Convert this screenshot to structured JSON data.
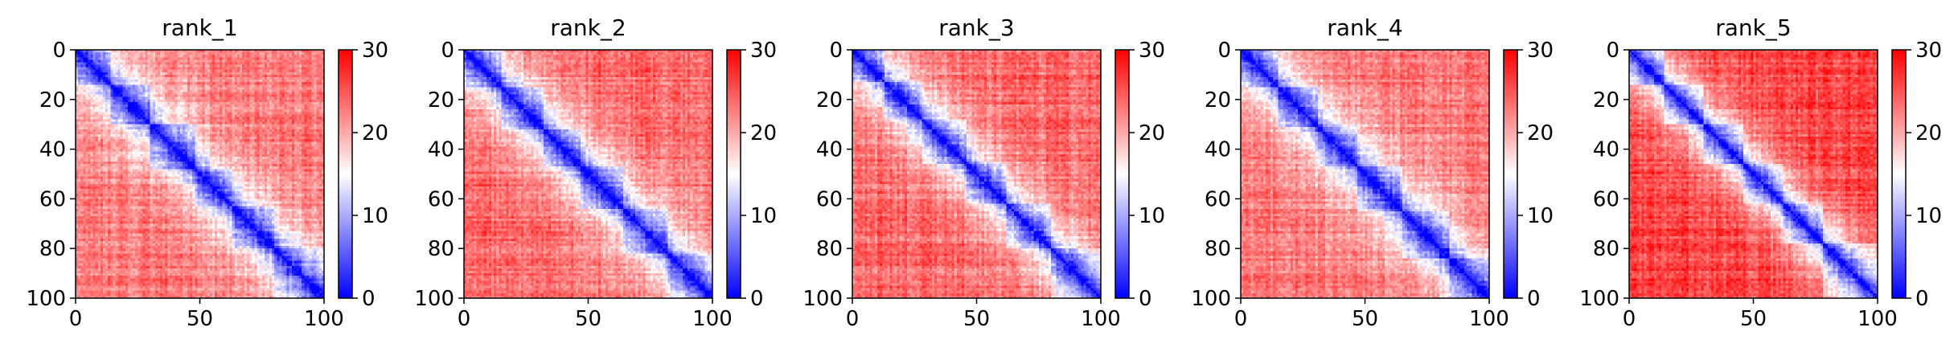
{
  "colors": {
    "low": "#0000ff",
    "mid": "#ffffff",
    "high": "#ff0000",
    "axis": "#000000"
  },
  "chart_data": [
    {
      "type": "heatmap",
      "title": "rank_1",
      "size": 100,
      "x_ticks": [
        "0",
        "50",
        "100"
      ],
      "y_ticks": [
        "0",
        "20",
        "40",
        "60",
        "80",
        "100"
      ],
      "xlim": [
        0,
        100
      ],
      "ylim": [
        100,
        0
      ],
      "colorbar": {
        "ticks": [
          "0",
          "10",
          "20",
          "30"
        ],
        "range": [
          0,
          30
        ],
        "colormap": "bwr"
      },
      "band_width": 12,
      "offdiag_level": 23,
      "grid": false,
      "domains": [
        [
          0,
          14
        ],
        [
          14,
          30
        ],
        [
          30,
          48
        ],
        [
          48,
          63
        ],
        [
          63,
          80
        ],
        [
          80,
          100
        ]
      ]
    },
    {
      "type": "heatmap",
      "title": "rank_2",
      "size": 100,
      "x_ticks": [
        "0",
        "50",
        "100"
      ],
      "y_ticks": [
        "0",
        "20",
        "40",
        "60",
        "80",
        "100"
      ],
      "xlim": [
        0,
        100
      ],
      "ylim": [
        100,
        0
      ],
      "colorbar": {
        "ticks": [
          "0",
          "10",
          "20",
          "30"
        ],
        "range": [
          0,
          30
        ],
        "colormap": "bwr"
      },
      "band_width": 12,
      "offdiag_level": 24,
      "grid": false,
      "domains": [
        [
          0,
          15
        ],
        [
          15,
          32
        ],
        [
          32,
          47
        ],
        [
          47,
          64
        ],
        [
          64,
          82
        ],
        [
          82,
          100
        ]
      ]
    },
    {
      "type": "heatmap",
      "title": "rank_3",
      "size": 100,
      "x_ticks": [
        "0",
        "50",
        "100"
      ],
      "y_ticks": [
        "0",
        "20",
        "40",
        "60",
        "80",
        "100"
      ],
      "xlim": [
        0,
        100
      ],
      "ylim": [
        100,
        0
      ],
      "colorbar": {
        "ticks": [
          "0",
          "10",
          "20",
          "30"
        ],
        "range": [
          0,
          30
        ],
        "colormap": "bwr"
      },
      "band_width": 11,
      "offdiag_level": 24,
      "grid": false,
      "domains": [
        [
          0,
          13
        ],
        [
          13,
          28
        ],
        [
          28,
          46
        ],
        [
          46,
          62
        ],
        [
          62,
          80
        ],
        [
          80,
          100
        ]
      ]
    },
    {
      "type": "heatmap",
      "title": "rank_4",
      "size": 100,
      "x_ticks": [
        "0",
        "50",
        "100"
      ],
      "y_ticks": [
        "0",
        "20",
        "40",
        "60",
        "80",
        "100"
      ],
      "xlim": [
        0,
        100
      ],
      "ylim": [
        100,
        0
      ],
      "colorbar": {
        "ticks": [
          "0",
          "10",
          "20",
          "30"
        ],
        "range": [
          0,
          30
        ],
        "colormap": "bwr"
      },
      "band_width": 12,
      "offdiag_level": 23,
      "grid": false,
      "domains": [
        [
          0,
          15
        ],
        [
          15,
          31
        ],
        [
          31,
          47
        ],
        [
          47,
          65
        ],
        [
          65,
          84
        ],
        [
          84,
          100
        ]
      ]
    },
    {
      "type": "heatmap",
      "title": "rank_5",
      "size": 100,
      "x_ticks": [
        "0",
        "50",
        "100"
      ],
      "y_ticks": [
        "0",
        "20",
        "40",
        "60",
        "80",
        "100"
      ],
      "xlim": [
        0,
        100
      ],
      "ylim": [
        100,
        0
      ],
      "colorbar": {
        "ticks": [
          "0",
          "10",
          "20",
          "30"
        ],
        "range": [
          0,
          30
        ],
        "colormap": "bwr"
      },
      "band_width": 10,
      "offdiag_level": 26,
      "grid": false,
      "domains": [
        [
          0,
          14
        ],
        [
          14,
          30
        ],
        [
          30,
          46
        ],
        [
          46,
          62
        ],
        [
          62,
          78
        ],
        [
          78,
          100
        ]
      ]
    }
  ]
}
